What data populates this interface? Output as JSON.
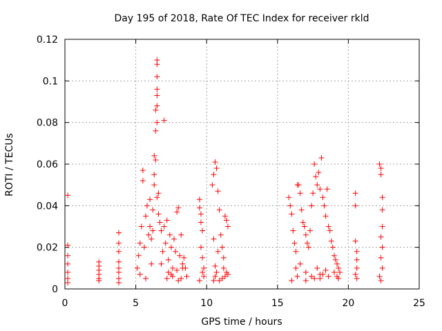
{
  "chart_data": {
    "type": "scatter",
    "title": "Day 195 of 2018, Rate Of TEC Index for receiver rkld",
    "xlabel": "GPS time / hours",
    "ylabel": "ROTI / TECUs",
    "xlim": [
      0,
      25
    ],
    "ylim": [
      0,
      0.12
    ],
    "xticks": [
      0,
      5,
      10,
      15,
      20,
      25
    ],
    "xtick_labels": [
      "0",
      "5",
      "10",
      "15",
      "20",
      "25"
    ],
    "yticks": [
      0,
      0.02,
      0.04,
      0.06,
      0.08,
      0.1,
      0.12
    ],
    "ytick_labels": [
      "0",
      "0.02",
      "0.04",
      "0.06",
      "0.08",
      "0.1",
      "0.12"
    ],
    "grid": true,
    "marker": "+",
    "color": "#ff0000",
    "series": [
      {
        "name": "ROTI",
        "x": [
          0.2,
          0.2,
          0.2,
          0.2,
          0.2,
          0.2,
          0.2,
          2.4,
          2.4,
          2.4,
          2.4,
          2.4,
          2.4,
          3.8,
          3.8,
          3.8,
          3.8,
          3.8,
          3.8,
          3.8,
          3.8,
          5.1,
          5.2,
          5.3,
          5.4,
          5.5,
          5.5,
          5.6,
          5.7,
          5.8,
          5.9,
          6.0,
          6.0,
          6.1,
          6.2,
          6.2,
          6.3,
          6.3,
          6.3,
          6.4,
          6.4,
          6.4,
          6.5,
          6.5,
          6.5,
          6.5,
          6.5,
          6.5,
          6.5,
          6.5,
          6.6,
          6.6,
          6.7,
          6.8,
          6.9,
          7.0,
          7.1,
          7.2,
          7.3,
          7.4,
          7.5,
          7.6,
          7.7,
          7.8,
          7.9,
          8.0,
          8.1,
          8.2,
          8.3,
          8.4,
          8.5,
          8.6,
          7.0,
          7.3,
          7.6,
          8.0,
          8.3,
          6.8,
          7.2,
          7.5,
          7.9,
          8.2,
          5.3,
          5.7,
          6.1,
          9.5,
          9.5,
          9.6,
          9.6,
          9.7,
          9.7,
          9.8,
          9.8,
          9.5,
          9.6,
          9.7,
          10.4,
          10.5,
          10.6,
          10.7,
          10.8,
          10.9,
          11.0,
          11.1,
          11.2,
          11.3,
          11.4,
          11.5,
          10.5,
          10.6,
          10.7,
          10.6,
          10.5,
          10.8,
          11.2,
          11.5,
          10.9,
          11.1,
          11.3,
          11.4,
          15.8,
          15.9,
          16.0,
          16.1,
          16.2,
          16.3,
          16.4,
          16.5,
          16.6,
          16.7,
          16.8,
          16.9,
          17.0,
          17.1,
          17.2,
          17.3,
          17.4,
          17.5,
          17.6,
          17.7,
          17.8,
          17.9,
          18.0,
          18.1,
          18.2,
          18.3,
          18.4,
          18.5,
          18.6,
          18.7,
          18.8,
          18.9,
          19.0,
          19.1,
          19.2,
          19.3,
          19.4,
          16.3,
          16.6,
          17.0,
          17.4,
          17.8,
          18.2,
          18.6,
          19.0,
          19.3,
          16.0,
          16.4,
          17.6,
          18.0,
          18.4,
          17.0,
          18.0,
          19.2,
          20.5,
          20.5,
          20.5,
          20.6,
          20.6,
          20.6,
          20.5,
          20.6,
          22.2,
          22.3,
          22.3,
          22.4,
          22.4,
          22.4,
          22.3,
          22.4,
          22.3,
          22.4,
          22.2,
          22.3
        ],
        "y": [
          0.045,
          0.021,
          0.016,
          0.012,
          0.008,
          0.005,
          0.003,
          0.013,
          0.011,
          0.009,
          0.007,
          0.005,
          0.004,
          0.027,
          0.022,
          0.018,
          0.013,
          0.01,
          0.008,
          0.005,
          0.003,
          0.01,
          0.016,
          0.022,
          0.03,
          0.052,
          0.057,
          0.02,
          0.035,
          0.04,
          0.026,
          0.03,
          0.043,
          0.024,
          0.028,
          0.038,
          0.05,
          0.055,
          0.064,
          0.062,
          0.076,
          0.086,
          0.11,
          0.108,
          0.102,
          0.096,
          0.093,
          0.088,
          0.08,
          0.044,
          0.036,
          0.046,
          0.032,
          0.028,
          0.018,
          0.03,
          0.022,
          0.033,
          0.014,
          0.026,
          0.02,
          0.01,
          0.024,
          0.018,
          0.037,
          0.039,
          0.016,
          0.026,
          0.012,
          0.015,
          0.01,
          0.006,
          0.081,
          0.008,
          0.006,
          0.004,
          0.01,
          0.012,
          0.005,
          0.007,
          0.009,
          0.005,
          0.007,
          0.005,
          0.012,
          0.043,
          0.039,
          0.036,
          0.032,
          0.028,
          0.015,
          0.01,
          0.006,
          0.004,
          0.02,
          0.008,
          0.05,
          0.055,
          0.061,
          0.058,
          0.047,
          0.038,
          0.026,
          0.02,
          0.015,
          0.035,
          0.033,
          0.03,
          0.024,
          0.011,
          0.008,
          0.006,
          0.004,
          0.018,
          0.01,
          0.007,
          0.004,
          0.005,
          0.006,
          0.008,
          0.044,
          0.04,
          0.036,
          0.028,
          0.022,
          0.018,
          0.05,
          0.05,
          0.046,
          0.038,
          0.032,
          0.03,
          0.026,
          0.022,
          0.02,
          0.028,
          0.04,
          0.046,
          0.06,
          0.054,
          0.05,
          0.056,
          0.048,
          0.063,
          0.044,
          0.04,
          0.035,
          0.048,
          0.03,
          0.028,
          0.023,
          0.02,
          0.016,
          0.014,
          0.012,
          0.01,
          0.008,
          0.01,
          0.012,
          0.008,
          0.006,
          0.01,
          0.007,
          0.006,
          0.008,
          0.005,
          0.004,
          0.006,
          0.005,
          0.007,
          0.009,
          0.004,
          0.005,
          0.006,
          0.046,
          0.04,
          0.023,
          0.018,
          0.014,
          0.01,
          0.007,
          0.005,
          0.06,
          0.058,
          0.055,
          0.044,
          0.038,
          0.03,
          0.025,
          0.02,
          0.015,
          0.01,
          0.006,
          0.004
        ]
      }
    ]
  }
}
